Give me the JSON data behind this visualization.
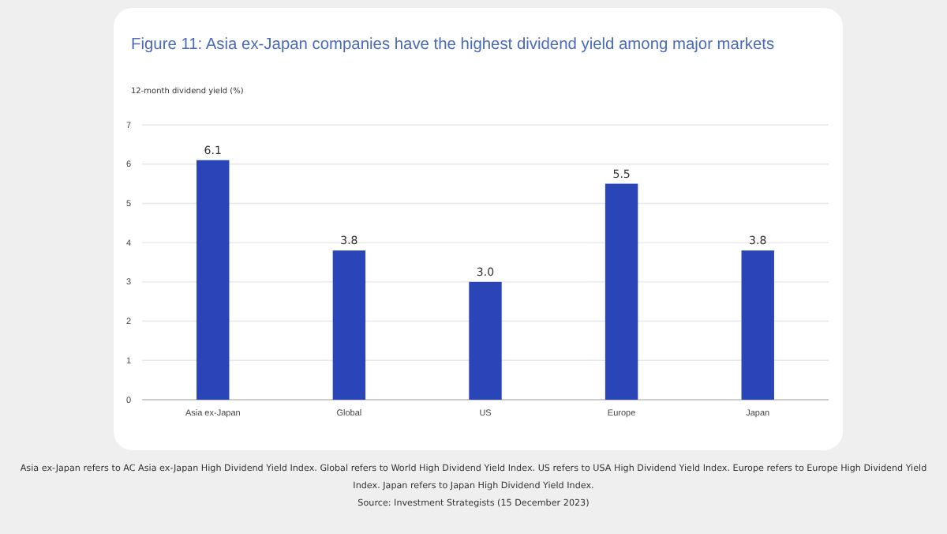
{
  "chart_data": {
    "type": "bar",
    "title": "Figure 11: Asia ex-Japan companies have the highest dividend yield among major markets",
    "ylabel": "12-month dividend yield (%)",
    "categories": [
      "Asia ex-Japan",
      "Global",
      "US",
      "Europe",
      "Japan"
    ],
    "values": [
      6.1,
      3.8,
      3.0,
      5.5,
      3.8
    ],
    "color": "#2a45b8",
    "ylim": [
      0,
      7
    ],
    "yticks": [
      0,
      1,
      2,
      3,
      4,
      5,
      6,
      7
    ],
    "grid": "y",
    "value_labels": [
      "6.1",
      "3.8",
      "3.0",
      "5.5",
      "3.8"
    ],
    "annotations": [
      "Asia ex-Japan refers to AC Asia ex-Japan High Dividend Yield Index. Global refers to World High Dividend Yield Index. US refers to USA High Dividend Yield Index. Europe refers to Europe High Dividend Yield Index. Japan refers to Japan High Dividend Yield Index.",
      "Source: Investment Strategists (15 December 2023)"
    ]
  }
}
